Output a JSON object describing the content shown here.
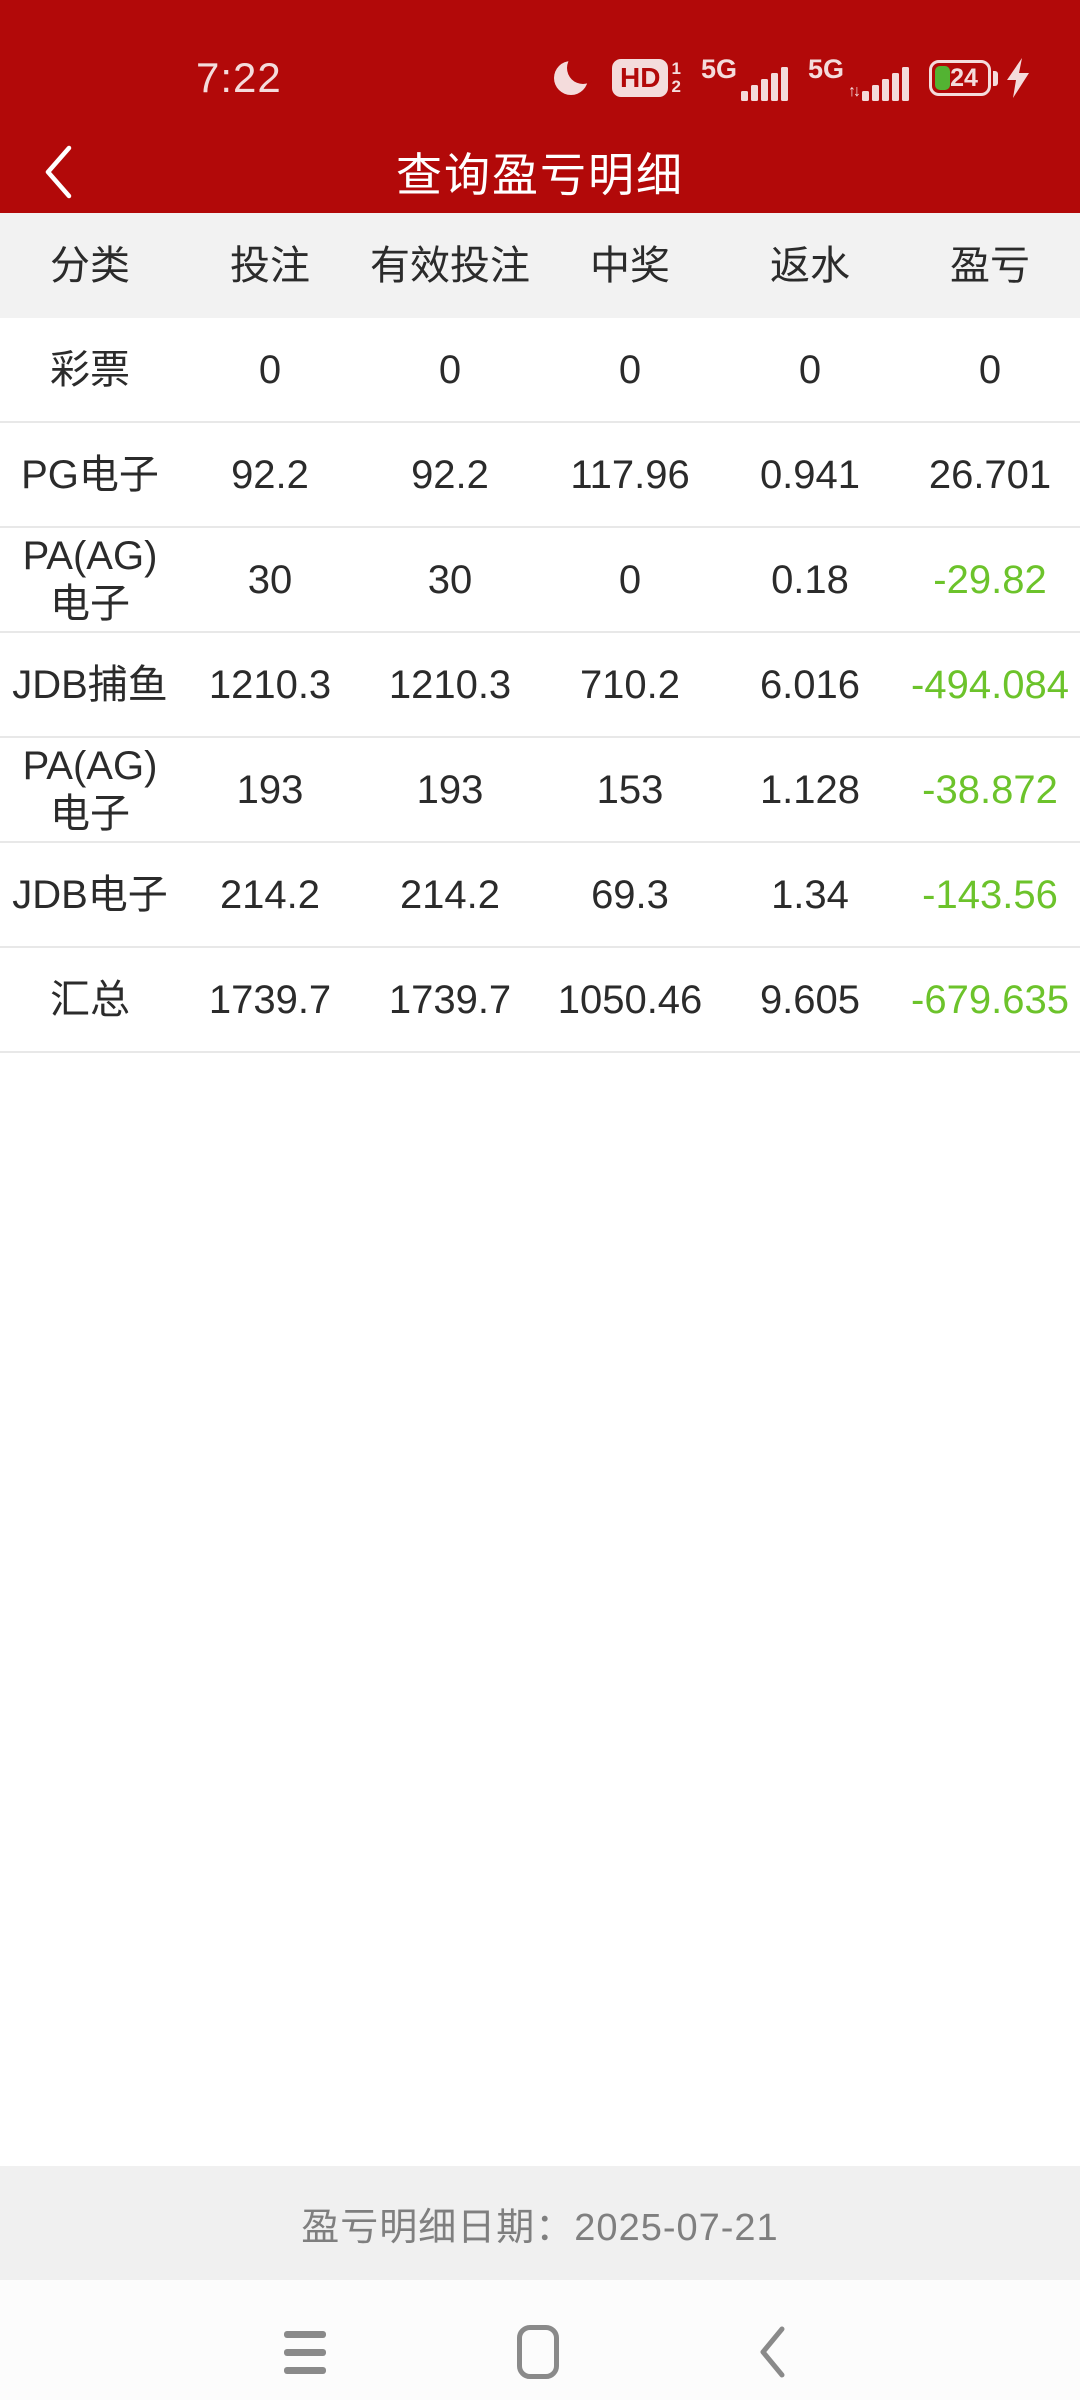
{
  "status_bar": {
    "time": "7:22",
    "moon_icon": "moon-icon",
    "hd_label": "HD",
    "hd_sub_top": "1",
    "hd_sub_bottom": "2",
    "network1_label": "5G",
    "network2_label": "5G",
    "network2_arrows": "↑↓",
    "battery_percent": "24",
    "charging_icon": "lightning-bolt"
  },
  "header": {
    "title": "查询盈亏明细",
    "back_icon": "chevron-left"
  },
  "table": {
    "columns": [
      "分类",
      "投注",
      "有效投注",
      "中奖",
      "返水",
      "盈亏"
    ],
    "rows": [
      {
        "cells": [
          "彩票",
          "0",
          "0",
          "0",
          "0",
          "0"
        ],
        "negative": false
      },
      {
        "cells": [
          "PG电子",
          "92.2",
          "92.2",
          "117.96",
          "0.941",
          "26.701"
        ],
        "negative": false
      },
      {
        "cells": [
          "PA(AG)电子",
          "30",
          "30",
          "0",
          "0.18",
          "-29.82"
        ],
        "negative": true
      },
      {
        "cells": [
          "JDB捕鱼",
          "1210.3",
          "1210.3",
          "710.2",
          "6.016",
          "-494.084"
        ],
        "negative": true
      },
      {
        "cells": [
          "PA(AG)电子",
          "193",
          "193",
          "153",
          "1.128",
          "-38.872"
        ],
        "negative": true
      },
      {
        "cells": [
          "JDB电子",
          "214.2",
          "214.2",
          "69.3",
          "1.34",
          "-143.56"
        ],
        "negative": true
      },
      {
        "cells": [
          "汇总",
          "1739.7",
          "1739.7",
          "1050.46",
          "9.605",
          "-679.635"
        ],
        "negative": true
      }
    ]
  },
  "footer": {
    "date_label": "盈亏明细日期：2025-07-21"
  },
  "nav_bar": {
    "icons": [
      "menu",
      "home",
      "back"
    ]
  },
  "colors": {
    "header_red": "#b20909",
    "negative_green": "#6cc32b",
    "battery_green": "#53b332",
    "table_header_bg": "#f2f2f2",
    "date_bar_bg": "#f0f0f0",
    "nav_icon_gray": "#8a8a8a"
  }
}
